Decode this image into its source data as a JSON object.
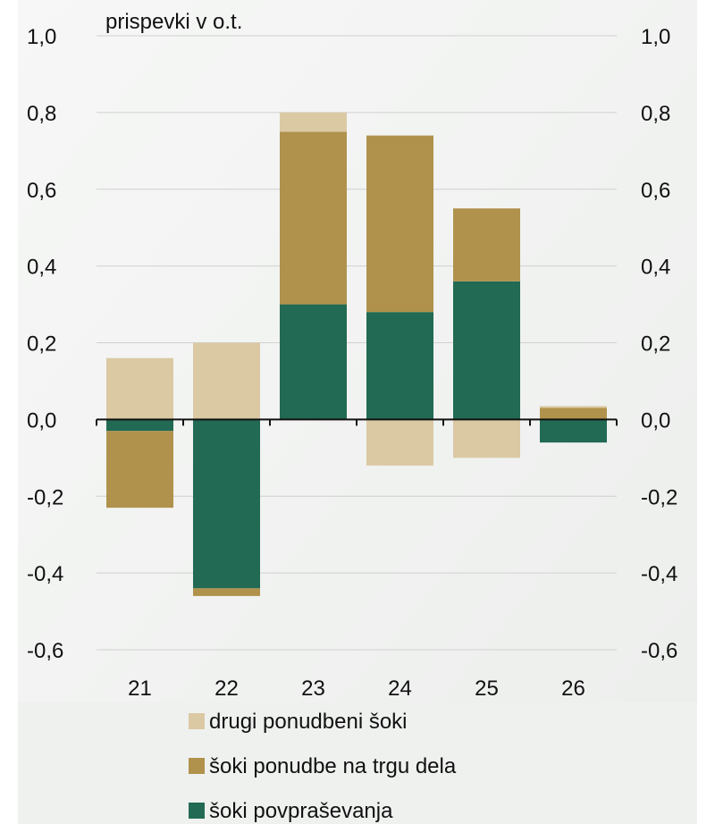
{
  "chart_data": {
    "type": "bar",
    "stacked": true,
    "ylabel": "prispevki v o.t.",
    "categories": [
      "21",
      "22",
      "23",
      "24",
      "25",
      "26"
    ],
    "ylim": [
      -0.6,
      1.0
    ],
    "yticks": [
      "1,0",
      "0,8",
      "0,6",
      "0,4",
      "0,2",
      "0,0",
      "-0,2",
      "-0,4",
      "-0,6"
    ],
    "ytick_values": [
      1.0,
      0.8,
      0.6,
      0.4,
      0.2,
      0.0,
      -0.2,
      -0.4,
      -0.6
    ],
    "grid": true,
    "legend_position": "bottom",
    "series": [
      {
        "name": "šoki povpraševanja",
        "color": "#226a53",
        "values": [
          -0.03,
          -0.44,
          0.3,
          0.28,
          0.36,
          -0.06
        ]
      },
      {
        "name": "šoki ponudbe na trgu dela",
        "color": "#b0924c",
        "values": [
          -0.2,
          -0.02,
          0.45,
          0.46,
          0.19,
          0.03
        ]
      },
      {
        "name": "drugi ponudbeni šoki",
        "color": "#dbc9a4",
        "values": [
          0.16,
          0.2,
          0.05,
          -0.12,
          -0.1,
          0.005
        ]
      }
    ],
    "legend_order": [
      "drugi ponudbeni šoki",
      "šoki ponudbe na trgu dela",
      "šoki povpraševanja"
    ],
    "colors": {
      "background": "#f3f4f3",
      "gridline": "#d0d0d0",
      "axis": "#111111"
    }
  }
}
